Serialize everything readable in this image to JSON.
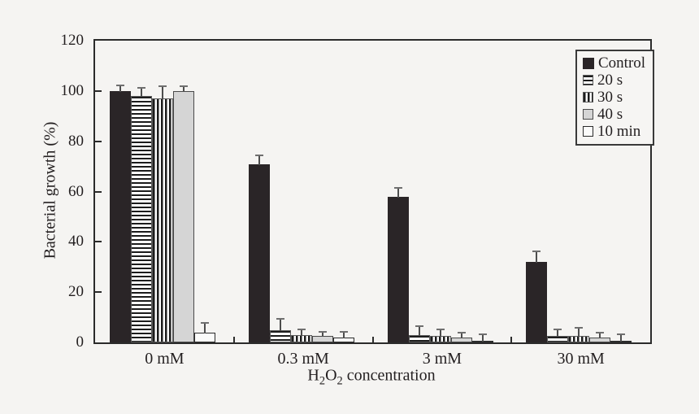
{
  "figure": {
    "background_color": "#f5f4f2",
    "text_color": "#231f20",
    "axis_color": "#2b2b2b"
  },
  "chart_data": {
    "type": "bar",
    "title": "",
    "xlabel": "H2O2 concentration",
    "ylabel": "Bacterial growth (%)",
    "ylim": [
      0,
      120
    ],
    "yticks": [
      0,
      20,
      40,
      60,
      80,
      100,
      120
    ],
    "grid": false,
    "error_bars": true,
    "legend_position": "top-right",
    "categories": [
      "0 mM",
      "0.3 mM",
      "3 mM",
      "30 mM"
    ],
    "series": [
      {
        "name": "Control",
        "pattern": "solid-black",
        "color": "#2a2527",
        "values": [
          100,
          71,
          58,
          32
        ],
        "errors": [
          2,
          3,
          3,
          4
        ]
      },
      {
        "name": "20 s",
        "pattern": "h-stripes",
        "color": "#1c1c1c",
        "values": [
          98,
          5,
          3,
          2.5
        ],
        "errors": [
          3,
          4,
          3,
          2.5
        ]
      },
      {
        "name": "30 s",
        "pattern": "v-stripes",
        "color": "#1c1c1c",
        "values": [
          97,
          3,
          2.5,
          2.5
        ],
        "errors": [
          4.5,
          2,
          2.5,
          3
        ]
      },
      {
        "name": "40 s",
        "pattern": "solid-gray",
        "color": "#d5d5d5",
        "values": [
          100,
          2.5,
          2,
          2
        ],
        "errors": [
          1.5,
          1.5,
          1.5,
          1.5
        ]
      },
      {
        "name": "10 min",
        "pattern": "solid-white",
        "color": "#ffffff",
        "values": [
          4,
          1.8,
          0.5,
          0.5
        ],
        "errors": [
          3.5,
          2,
          2.5,
          2.5
        ]
      }
    ]
  }
}
